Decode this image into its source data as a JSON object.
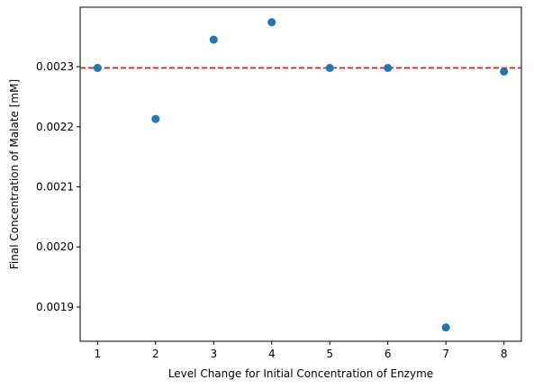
{
  "chart_data": {
    "type": "scatter",
    "xlabel": "Level Change for Initial Concentration of Enzyme",
    "ylabel": "Final Concentration of Malate [mM]",
    "x": [
      1,
      2,
      3,
      4,
      5,
      6,
      7,
      8
    ],
    "y": [
      0.002298,
      0.002213,
      0.002345,
      0.002374,
      0.002298,
      0.002298,
      0.001866,
      0.002292
    ],
    "xlim": [
      0.7,
      8.3
    ],
    "ylim": [
      0.001843,
      0.002399
    ],
    "xticks": [
      1,
      2,
      3,
      4,
      5,
      6,
      7,
      8
    ],
    "xtick_labels": [
      "1",
      "2",
      "3",
      "4",
      "5",
      "6",
      "7",
      "8"
    ],
    "yticks": [
      0.0019,
      0.002,
      0.0021,
      0.0022,
      0.0023
    ],
    "ytick_labels": [
      "0.0019",
      "0.0020",
      "0.0021",
      "0.0022",
      "0.0023"
    ],
    "reference_line": {
      "orientation": "horizontal",
      "y": 0.002298,
      "style": "dashed",
      "color": "#ff0000"
    },
    "marker_color": "#1f77b4",
    "grid": false,
    "legend": "none"
  }
}
